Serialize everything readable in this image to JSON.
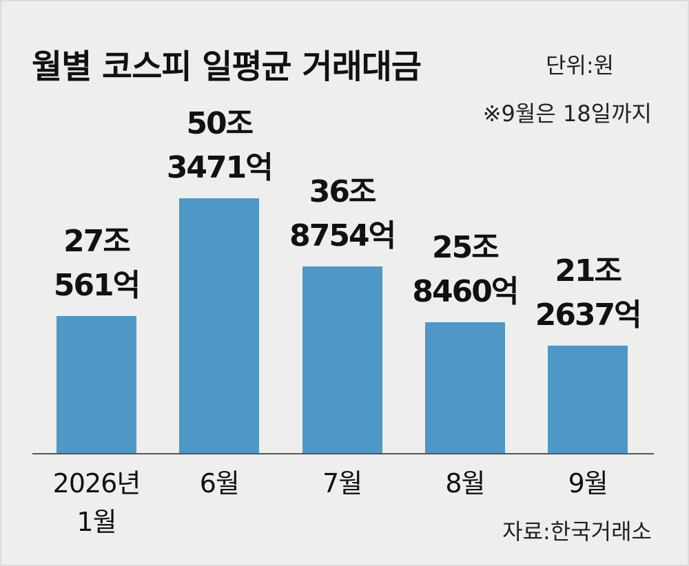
{
  "chart_data": {
    "type": "bar",
    "title": "월별 코스피 일평균 거래대금",
    "subtitle": "단위:원",
    "note": "※9월은 18일까지",
    "source": "자료:한국거래소",
    "categories": [
      "2026년\n1월",
      "6월",
      "7월",
      "8월",
      "9월"
    ],
    "values": [
      27056100000000,
      50347100000000,
      36875400000000,
      25846000000000,
      21263700000000
    ],
    "value_labels": [
      "27조\n561억",
      "50조\n3471억",
      "36조\n8754억",
      "25조\n8460억",
      "21조\n2637억"
    ],
    "color": "#4e97c6"
  }
}
